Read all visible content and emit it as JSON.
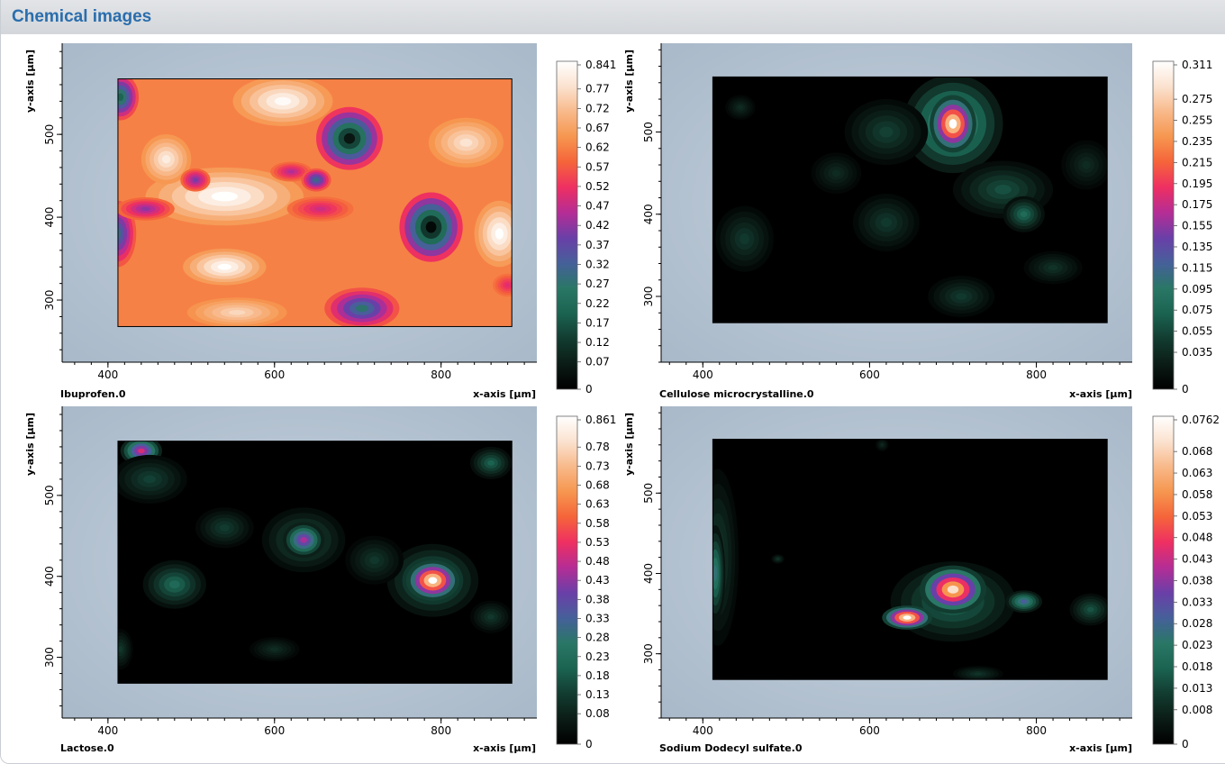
{
  "header": {
    "title": "Chemical images"
  },
  "palette": {
    "stops": [
      "#000000",
      "#0b1c16",
      "#123c30",
      "#1b6351",
      "#2a7766",
      "#46609a",
      "#6a3fa8",
      "#b52d95",
      "#ee2f62",
      "#f5643a",
      "#f6964f",
      "#f8b98a",
      "#fbe2cf",
      "#ffffff"
    ],
    "background_tint": "#b9c8d8",
    "axis_label_color": "#000000"
  },
  "chart_data": [
    {
      "type": "heatmap",
      "name": "Ibuprofen.0",
      "xlabel": "x-axis [µm]",
      "ylabel": "y-axis [µm]",
      "xlim": [
        345,
        915
      ],
      "ylim": [
        225,
        610
      ],
      "data_extent": {
        "x": [
          412,
          885
        ],
        "y": [
          268,
          567
        ]
      },
      "xticks": [
        "400",
        "600",
        "800"
      ],
      "yticks": [
        "300",
        "400",
        "500"
      ],
      "xtick_values": [
        400,
        600,
        800
      ],
      "ytick_values": [
        300,
        400,
        500
      ],
      "colorbar": {
        "labels": [
          "0.841",
          "0.77",
          "0.72",
          "0.67",
          "0.62",
          "0.57",
          "0.52",
          "0.47",
          "0.42",
          "0.37",
          "0.32",
          "0.27",
          "0.22",
          "0.17",
          "0.12",
          "0.07",
          "0"
        ],
        "max": 0.841,
        "min": 0
      },
      "background": 0.62,
      "blobs": [
        {
          "x": 540,
          "y": 425,
          "rx": 95,
          "ry": 35,
          "v": 0.84
        },
        {
          "x": 610,
          "y": 540,
          "rx": 60,
          "ry": 30,
          "v": 0.83
        },
        {
          "x": 470,
          "y": 470,
          "rx": 30,
          "ry": 30,
          "v": 0.8
        },
        {
          "x": 540,
          "y": 340,
          "rx": 50,
          "ry": 22,
          "v": 0.84
        },
        {
          "x": 870,
          "y": 380,
          "rx": 30,
          "ry": 40,
          "v": 0.84
        },
        {
          "x": 830,
          "y": 490,
          "rx": 45,
          "ry": 30,
          "v": 0.78
        },
        {
          "x": 555,
          "y": 285,
          "rx": 60,
          "ry": 18,
          "v": 0.76
        },
        {
          "x": 690,
          "y": 495,
          "rx": 40,
          "ry": 38,
          "v": 0.05
        },
        {
          "x": 788,
          "y": 388,
          "rx": 38,
          "ry": 42,
          "v": 0.02
        },
        {
          "x": 415,
          "y": 545,
          "rx": 22,
          "ry": 28,
          "v": 0.2
        },
        {
          "x": 412,
          "y": 380,
          "rx": 22,
          "ry": 40,
          "v": 0.3
        },
        {
          "x": 705,
          "y": 290,
          "rx": 45,
          "ry": 25,
          "v": 0.27
        },
        {
          "x": 505,
          "y": 445,
          "rx": 18,
          "ry": 14,
          "v": 0.4
        },
        {
          "x": 445,
          "y": 410,
          "rx": 35,
          "ry": 14,
          "v": 0.42
        },
        {
          "x": 880,
          "y": 318,
          "rx": 18,
          "ry": 14,
          "v": 0.5
        },
        {
          "x": 620,
          "y": 455,
          "rx": 25,
          "ry": 12,
          "v": 0.45
        },
        {
          "x": 650,
          "y": 445,
          "rx": 18,
          "ry": 14,
          "v": 0.3
        },
        {
          "x": 655,
          "y": 410,
          "rx": 40,
          "ry": 15,
          "v": 0.48
        }
      ]
    },
    {
      "type": "heatmap",
      "name": "Cellulose microcrystalline.0",
      "xlabel": "x-axis [µm]",
      "ylabel": "y-axis [µm]",
      "xlim": [
        350,
        915
      ],
      "ylim": [
        220,
        608
      ],
      "data_extent": {
        "x": [
          412,
          885
        ],
        "y": [
          268,
          567
        ]
      },
      "xticks": [
        "400",
        "600",
        "800"
      ],
      "yticks": [
        "300",
        "400",
        "500"
      ],
      "xtick_values": [
        400,
        600,
        800
      ],
      "ytick_values": [
        300,
        400,
        500
      ],
      "colorbar": {
        "labels": [
          "0.311",
          "0.275",
          "0.255",
          "0.235",
          "0.215",
          "0.195",
          "0.175",
          "0.155",
          "0.135",
          "0.115",
          "0.095",
          "0.075",
          "0.055",
          "0.035",
          "0"
        ],
        "max": 0.311,
        "min": 0
      },
      "background": 0.0,
      "blobs": [
        {
          "x": 700,
          "y": 510,
          "rx": 60,
          "ry": 60,
          "v": 0.14
        },
        {
          "x": 700,
          "y": 510,
          "rx": 28,
          "ry": 35,
          "v": 0.31
        },
        {
          "x": 620,
          "y": 500,
          "rx": 50,
          "ry": 40,
          "v": 0.05
        },
        {
          "x": 760,
          "y": 430,
          "rx": 60,
          "ry": 35,
          "v": 0.06
        },
        {
          "x": 785,
          "y": 400,
          "rx": 25,
          "ry": 22,
          "v": 0.08
        },
        {
          "x": 450,
          "y": 370,
          "rx": 35,
          "ry": 40,
          "v": 0.045
        },
        {
          "x": 620,
          "y": 390,
          "rx": 40,
          "ry": 35,
          "v": 0.045
        },
        {
          "x": 560,
          "y": 450,
          "rx": 30,
          "ry": 25,
          "v": 0.035
        },
        {
          "x": 710,
          "y": 300,
          "rx": 40,
          "ry": 25,
          "v": 0.045
        },
        {
          "x": 820,
          "y": 335,
          "rx": 35,
          "ry": 20,
          "v": 0.04
        },
        {
          "x": 860,
          "y": 460,
          "rx": 30,
          "ry": 30,
          "v": 0.035
        },
        {
          "x": 445,
          "y": 530,
          "rx": 18,
          "ry": 15,
          "v": 0.035
        }
      ]
    },
    {
      "type": "heatmap",
      "name": "Lactose.0",
      "xlabel": "x-axis [µm]",
      "ylabel": "y-axis [µm]",
      "xlim": [
        345,
        915
      ],
      "ylim": [
        225,
        610
      ],
      "data_extent": {
        "x": [
          412,
          885
        ],
        "y": [
          268,
          567
        ]
      },
      "xticks": [
        "400",
        "600",
        "800"
      ],
      "yticks": [
        "300",
        "400",
        "500"
      ],
      "xtick_values": [
        400,
        600,
        800
      ],
      "ytick_values": [
        300,
        400,
        500
      ],
      "colorbar": {
        "labels": [
          "0.861",
          "0.78",
          "0.73",
          "0.68",
          "0.63",
          "0.58",
          "0.53",
          "0.48",
          "0.43",
          "0.38",
          "0.33",
          "0.28",
          "0.23",
          "0.18",
          "0.13",
          "0.08",
          "0"
        ],
        "max": 0.861,
        "min": 0
      },
      "background": 0.0,
      "blobs": [
        {
          "x": 790,
          "y": 395,
          "rx": 55,
          "ry": 45,
          "v": 0.25
        },
        {
          "x": 790,
          "y": 395,
          "rx": 32,
          "ry": 25,
          "v": 0.86
        },
        {
          "x": 635,
          "y": 445,
          "rx": 50,
          "ry": 40,
          "v": 0.18
        },
        {
          "x": 635,
          "y": 445,
          "rx": 25,
          "ry": 22,
          "v": 0.45
        },
        {
          "x": 480,
          "y": 390,
          "rx": 38,
          "ry": 30,
          "v": 0.22
        },
        {
          "x": 440,
          "y": 555,
          "rx": 25,
          "ry": 18,
          "v": 0.5
        },
        {
          "x": 450,
          "y": 520,
          "rx": 45,
          "ry": 30,
          "v": 0.14
        },
        {
          "x": 720,
          "y": 420,
          "rx": 35,
          "ry": 30,
          "v": 0.12
        },
        {
          "x": 860,
          "y": 540,
          "rx": 25,
          "ry": 20,
          "v": 0.2
        },
        {
          "x": 540,
          "y": 460,
          "rx": 35,
          "ry": 25,
          "v": 0.13
        },
        {
          "x": 415,
          "y": 310,
          "rx": 15,
          "ry": 25,
          "v": 0.12
        },
        {
          "x": 860,
          "y": 350,
          "rx": 25,
          "ry": 20,
          "v": 0.12
        },
        {
          "x": 600,
          "y": 310,
          "rx": 30,
          "ry": 15,
          "v": 0.1
        }
      ]
    },
    {
      "type": "heatmap",
      "name": "Sodium Dodecyl sulfate.0",
      "xlabel": "x-axis [µm]",
      "ylabel": "y-axis [µm]",
      "xlim": [
        350,
        915
      ],
      "ylim": [
        220,
        608
      ],
      "data_extent": {
        "x": [
          412,
          885
        ],
        "y": [
          268,
          567
        ]
      },
      "xticks": [
        "400",
        "600",
        "800"
      ],
      "yticks": [
        "300",
        "400",
        "500"
      ],
      "xtick_values": [
        400,
        600,
        800
      ],
      "ytick_values": [
        300,
        400,
        500
      ],
      "colorbar": {
        "labels": [
          "0.0762",
          "0.068",
          "0.063",
          "0.058",
          "0.053",
          "0.048",
          "0.043",
          "0.038",
          "0.033",
          "0.028",
          "0.023",
          "0.018",
          "0.013",
          "0.008",
          "0"
        ],
        "max": 0.0762,
        "min": 0
      },
      "background": 0.0,
      "blobs": [
        {
          "x": 700,
          "y": 365,
          "rx": 75,
          "ry": 50,
          "v": 0.02
        },
        {
          "x": 700,
          "y": 380,
          "rx": 40,
          "ry": 30,
          "v": 0.07
        },
        {
          "x": 645,
          "y": 345,
          "rx": 30,
          "ry": 15,
          "v": 0.076
        },
        {
          "x": 785,
          "y": 365,
          "rx": 22,
          "ry": 14,
          "v": 0.03
        },
        {
          "x": 418,
          "y": 420,
          "rx": 25,
          "ry": 110,
          "v": 0.012
        },
        {
          "x": 415,
          "y": 400,
          "rx": 12,
          "ry": 60,
          "v": 0.025
        },
        {
          "x": 865,
          "y": 355,
          "rx": 25,
          "ry": 20,
          "v": 0.015
        },
        {
          "x": 490,
          "y": 418,
          "rx": 8,
          "ry": 6,
          "v": 0.01
        },
        {
          "x": 730,
          "y": 275,
          "rx": 30,
          "ry": 10,
          "v": 0.01
        },
        {
          "x": 615,
          "y": 560,
          "rx": 8,
          "ry": 8,
          "v": 0.008
        }
      ]
    }
  ]
}
